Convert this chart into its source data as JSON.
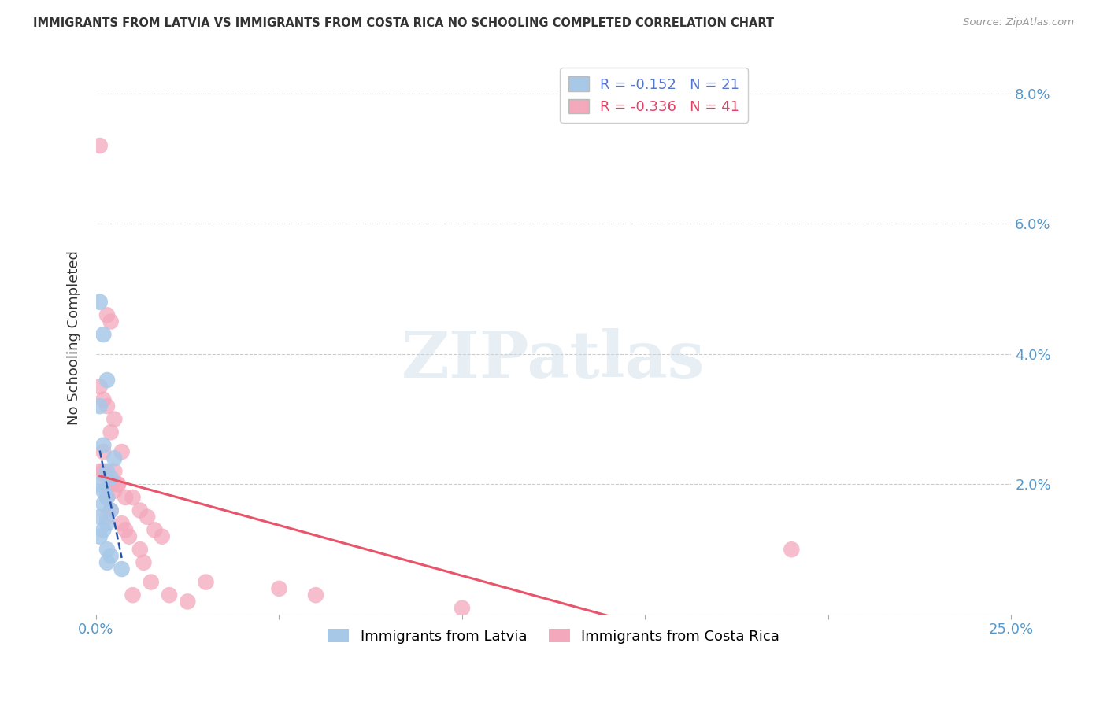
{
  "title": "IMMIGRANTS FROM LATVIA VS IMMIGRANTS FROM COSTA RICA NO SCHOOLING COMPLETED CORRELATION CHART",
  "source": "Source: ZipAtlas.com",
  "ylabel": "No Schooling Completed",
  "xlim": [
    0.0,
    0.25
  ],
  "ylim": [
    0.0,
    0.085
  ],
  "xticks": [
    0.0,
    0.05,
    0.1,
    0.15,
    0.2,
    0.25
  ],
  "yticks": [
    0.0,
    0.02,
    0.04,
    0.06,
    0.08
  ],
  "ytick_labels_right": [
    "",
    "2.0%",
    "4.0%",
    "6.0%",
    "8.0%"
  ],
  "xtick_labels": [
    "0.0%",
    "",
    "",
    "",
    "",
    "25.0%"
  ],
  "legend_r_latvia": "-0.152",
  "legend_n_latvia": "21",
  "legend_r_costarica": "-0.336",
  "legend_n_costarica": "41",
  "latvia_color": "#a8c8e8",
  "costarica_color": "#f4a8bc",
  "latvia_line_color": "#2255aa",
  "costarica_line_color": "#e8546a",
  "watermark_text": "ZIPatlas",
  "background_color": "#ffffff",
  "grid_color": "#cccccc",
  "latvia_x": [
    0.001,
    0.002,
    0.003,
    0.001,
    0.002,
    0.005,
    0.003,
    0.004,
    0.001,
    0.002,
    0.003,
    0.002,
    0.004,
    0.001,
    0.003,
    0.002,
    0.001,
    0.003,
    0.004,
    0.003,
    0.007
  ],
  "latvia_y": [
    0.048,
    0.043,
    0.036,
    0.032,
    0.026,
    0.024,
    0.022,
    0.021,
    0.02,
    0.019,
    0.018,
    0.017,
    0.016,
    0.015,
    0.014,
    0.013,
    0.012,
    0.01,
    0.009,
    0.008,
    0.007
  ],
  "costarica_x": [
    0.001,
    0.003,
    0.004,
    0.001,
    0.002,
    0.003,
    0.005,
    0.004,
    0.002,
    0.001,
    0.002,
    0.003,
    0.004,
    0.006,
    0.005,
    0.003,
    0.007,
    0.005,
    0.006,
    0.008,
    0.004,
    0.003,
    0.007,
    0.008,
    0.009,
    0.01,
    0.012,
    0.014,
    0.016,
    0.018,
    0.012,
    0.013,
    0.015,
    0.02,
    0.025,
    0.03,
    0.05,
    0.06,
    0.1,
    0.19,
    0.01
  ],
  "costarica_y": [
    0.072,
    0.046,
    0.045,
    0.035,
    0.033,
    0.032,
    0.03,
    0.028,
    0.025,
    0.022,
    0.022,
    0.021,
    0.02,
    0.02,
    0.019,
    0.018,
    0.025,
    0.022,
    0.02,
    0.018,
    0.016,
    0.015,
    0.014,
    0.013,
    0.012,
    0.018,
    0.016,
    0.015,
    0.013,
    0.012,
    0.01,
    0.008,
    0.005,
    0.003,
    0.002,
    0.005,
    0.004,
    0.003,
    0.001,
    0.01,
    0.003
  ]
}
